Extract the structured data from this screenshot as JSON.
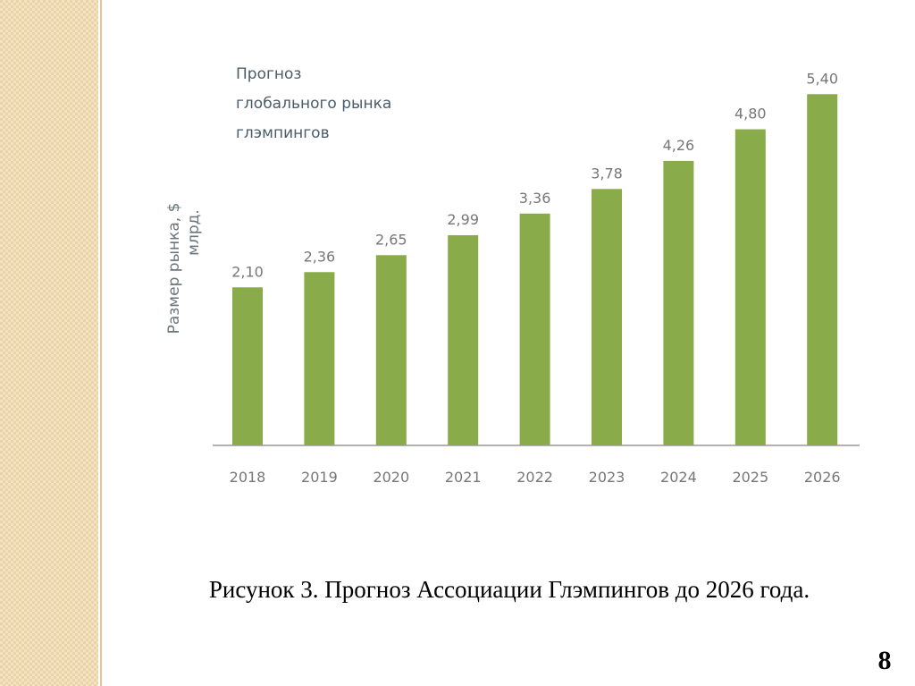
{
  "chart_data": {
    "type": "bar",
    "title": [
      "Прогноз",
      "глобального рынка",
      "глэмпингов"
    ],
    "y_label": [
      "Размер рынка, $",
      "млрд."
    ],
    "categories": [
      "2018",
      "2019",
      "2020",
      "2021",
      "2022",
      "2023",
      "2024",
      "2025",
      "2026"
    ],
    "values": [
      2.1,
      2.36,
      2.65,
      2.99,
      3.36,
      3.78,
      4.26,
      4.8,
      5.4
    ],
    "value_labels": [
      "2,10",
      "2,36",
      "2,65",
      "2,99",
      "3,36",
      "3,78",
      "4,26",
      "4,80",
      "5,40"
    ],
    "color": "#8aab4a",
    "ylim": [
      -0.6,
      6.0
    ]
  },
  "caption": "Рисунок 3. Прогноз Ассоциации Глэмпингов до 2026 года.",
  "page_number": "8"
}
